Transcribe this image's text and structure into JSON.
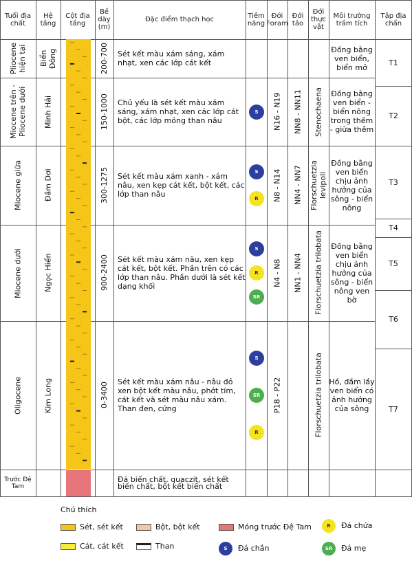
{
  "header": {
    "columns": [
      "Tuổi địa chất",
      "Hệ tầng",
      "Cột địa tầng",
      "Bề dày (m)",
      "Đặc điểm thạch học",
      "Tiềm năng",
      "Đới Foram",
      "Đới tảo",
      "Đới thực vật",
      "Môi trường trầm tích",
      "Tập địa chấn"
    ]
  },
  "rows": [
    {
      "age": "Pliocene hiện tại",
      "formation": "Biển Đông",
      "thickness": "200-700",
      "lithology": "Sét kết màu xám sáng, xám nhạt, xen các lớp cát kết",
      "environment": "Đồng bằng ven biển, biển mở"
    },
    {
      "age": "Miocene trên - Pliocene dưới",
      "formation": "Minh Hải",
      "thickness": "150-1000",
      "lithology": "Chủ yếu là sét kết màu xám sáng, xám nhạt, xen các lớp cát bột, các lớp mỏng than nâu",
      "potential": [
        "S"
      ],
      "foram": "N16 - N19",
      "algae": "NN8 - NN11",
      "flora": "Stenochaena",
      "environment": "Đồng bằng ven biển - biển nông trong thềm - giữa thềm"
    },
    {
      "age": "Miocene giữa",
      "formation": "Đầm Dơi",
      "thickness": "300-1275",
      "lithology": "Sét kết màu xám xanh - xám nâu, xen kẹp cát kết, bột kết, các lớp than nâu",
      "potential": [
        "S",
        "R"
      ],
      "foram": "N8 - N14",
      "algae": "NN4 - NN7",
      "flora": "Florschuetzia levipoli",
      "environment": "Đồng bằng ven biển chịu ảnh hưởng của sông - biển nông"
    },
    {
      "age": "Miocene dưới",
      "formation": "Ngọc Hiển",
      "thickness": "900-2400",
      "lithology": "Sét kết màu xám nâu, xen kẹp cát kết, bột kết. Phần trên có các lớp than nâu. Phần dưới là sét kết dạng khối",
      "potential": [
        "S",
        "R",
        "SR"
      ],
      "foram": "N4 - N8",
      "algae": "NN1 - NN4",
      "flora": "Florschuetzia trilobata",
      "environment": "Đồng bằng ven biển chịu ảnh hưởng của sông - biển nông ven bờ"
    },
    {
      "age": "Oligocene",
      "formation": "Kim Long",
      "thickness": "0-3400",
      "lithology": "Sét kết màu xám nâu - nâu đỏ xen bột kết màu nâu, phớt tím, cát kết và sét màu nâu xám. Than đen, cứng",
      "potential": [
        "S",
        "SR",
        "R"
      ],
      "foram": "P18 - P22",
      "flora": "Florschuetzia trilobata",
      "environment": "Hồ, đầm lầy ven biển có ảnh hưởng của sông"
    },
    {
      "age": "Trước Đệ Tam",
      "lithology": "Đá biến chất, quaczit, sét kết biến chất, bột kết biến chất"
    }
  ],
  "seismic": [
    "T1",
    "T2",
    "T3",
    "T4",
    "T5",
    "T6",
    "T7"
  ],
  "legend": {
    "title": "Chú thích",
    "items": [
      {
        "label": "Sét, sét kết"
      },
      {
        "label": "Bột, bột kết"
      },
      {
        "label": "Móng trước Đệ Tam"
      },
      {
        "code": "R",
        "label": "Đá chứa"
      },
      {
        "label": "Cát, cát kết"
      },
      {
        "label": "Than"
      },
      {
        "code": "S",
        "label": "Đá chắn"
      },
      {
        "code": "SR",
        "label": "Đá mẹ"
      }
    ]
  }
}
